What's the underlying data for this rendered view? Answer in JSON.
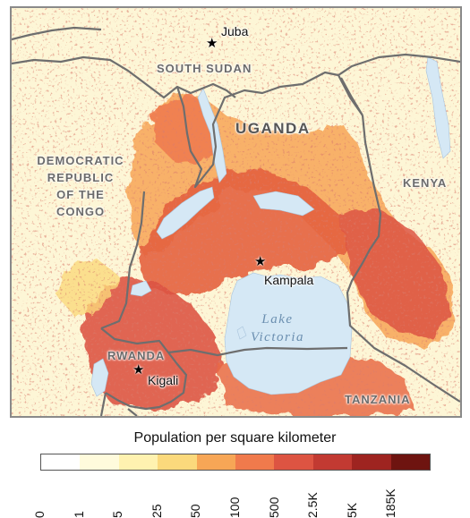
{
  "map": {
    "countries": {
      "south_sudan": "SOUTH SUDAN",
      "uganda": "UGANDA",
      "drc": [
        "DEMOCRATIC",
        "REPUBLIC",
        "OF THE",
        "CONGO"
      ],
      "kenya": "KENYA",
      "rwanda": "RWANDA",
      "tanzania": "TANZANIA"
    },
    "cities": {
      "juba": "Juba",
      "kampala": "Kampala",
      "kigali": "Kigali"
    },
    "lake": [
      "Lake",
      "Victoria"
    ],
    "colors": {
      "water": "#d5e8f5",
      "border": "#6e6e6e",
      "frame": "#8a8a8a"
    }
  },
  "legend": {
    "title": "Population per square kilometer",
    "ticks": [
      "0",
      "1",
      "5",
      "25",
      "50",
      "100",
      "500",
      "2.5K",
      "5K",
      "185K"
    ],
    "colors": [
      "#ffffff",
      "#fffbdc",
      "#fff2b0",
      "#fbd97c",
      "#f7a656",
      "#f07a4c",
      "#dd5442",
      "#c23a32",
      "#9e2420",
      "#6e1410"
    ]
  }
}
